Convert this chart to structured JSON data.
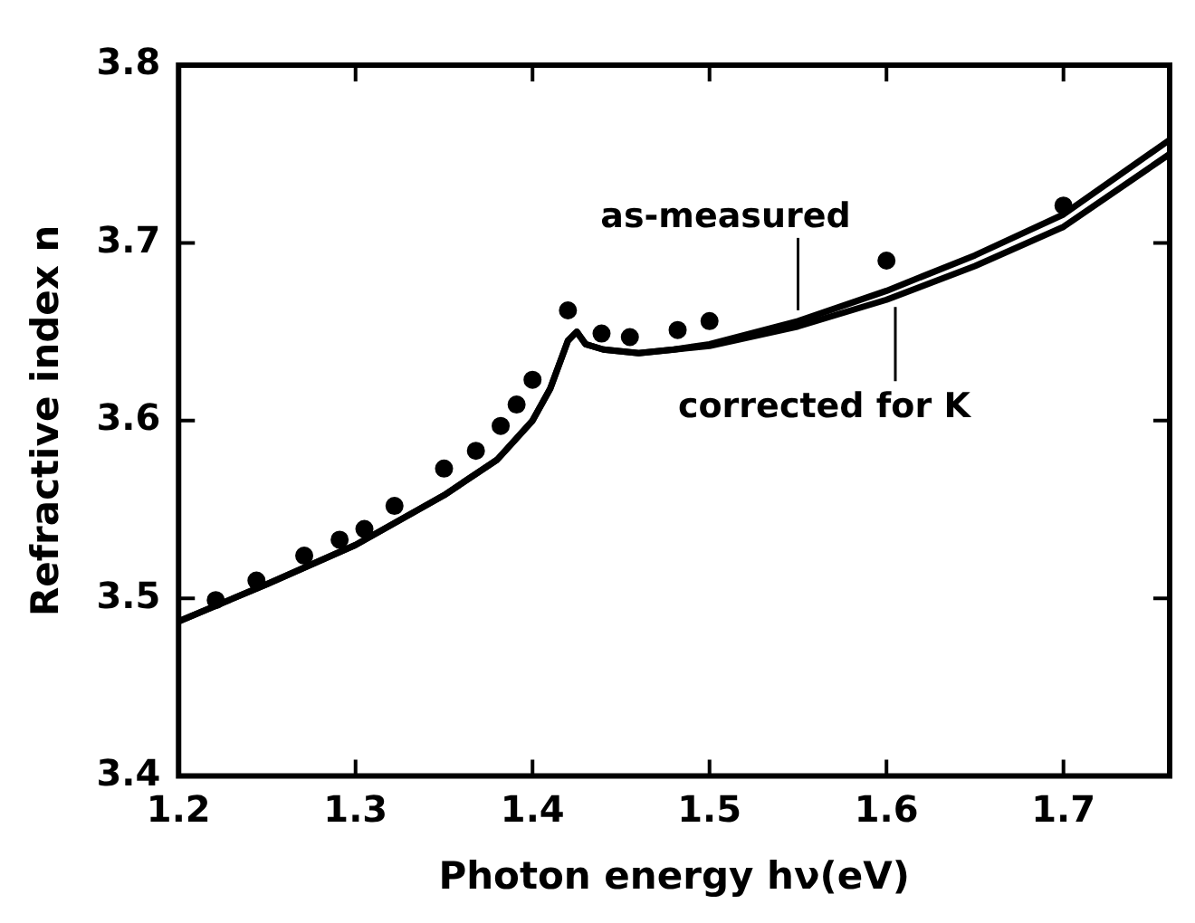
{
  "chart_data": {
    "type": "line",
    "xlabel": "Photon energy hν(eV)",
    "ylabel": "Refractive index n",
    "xlim": [
      1.2,
      1.76
    ],
    "xticks": [
      1.2,
      1.3,
      1.4,
      1.5,
      1.6,
      1.7
    ],
    "ylim": [
      3.4,
      3.8
    ],
    "yticks": [
      3.4,
      3.5,
      3.6,
      3.7,
      3.8
    ],
    "grid": false,
    "legend": false,
    "series": [
      {
        "color": "#000000",
        "marker": "none",
        "x": [
          1.2,
          1.25,
          1.3,
          1.35,
          1.38,
          1.4,
          1.41,
          1.42,
          1.425,
          1.43,
          1.44,
          1.46,
          1.48,
          1.5,
          1.55,
          1.6,
          1.65,
          1.7,
          1.76
        ],
        "values": [
          3.487,
          3.508,
          3.53,
          3.558,
          3.578,
          3.6,
          3.618,
          3.645,
          3.65,
          3.643,
          3.64,
          3.638,
          3.64,
          3.643,
          3.656,
          3.673,
          3.693,
          3.716,
          3.758
        ]
      },
      {
        "color": "#000000",
        "marker": "none",
        "x": [
          1.2,
          1.25,
          1.3,
          1.35,
          1.38,
          1.4,
          1.41,
          1.42,
          1.425,
          1.43,
          1.44,
          1.46,
          1.48,
          1.5,
          1.55,
          1.6,
          1.65,
          1.7,
          1.76
        ],
        "values": [
          3.487,
          3.508,
          3.53,
          3.558,
          3.578,
          3.6,
          3.618,
          3.645,
          3.65,
          3.643,
          3.64,
          3.638,
          3.64,
          3.642,
          3.653,
          3.668,
          3.687,
          3.709,
          3.75
        ]
      },
      {
        "type": "scatter",
        "color": "#000000",
        "marker": "circle",
        "x": [
          1.221,
          1.244,
          1.271,
          1.291,
          1.305,
          1.322,
          1.35,
          1.368,
          1.382,
          1.391
        ],
        "values": [
          3.499,
          3.51,
          3.524,
          3.533,
          3.539,
          3.552,
          3.573,
          3.583,
          3.597,
          3.609
        ]
      },
      {
        "type": "scatter",
        "color": "#000000",
        "marker": "circle",
        "x": [
          1.4,
          1.42,
          1.439,
          1.455,
          1.482,
          1.5,
          1.6,
          1.7
        ],
        "values": [
          3.623,
          3.662,
          3.649,
          3.647,
          3.651,
          3.656,
          3.69,
          3.721
        ]
      }
    ],
    "annotations": [
      {
        "text": "as-measured",
        "x": 1.55,
        "y": 3.658
      },
      {
        "text": "corrected for K",
        "x": 1.605,
        "y": 3.668
      }
    ]
  }
}
